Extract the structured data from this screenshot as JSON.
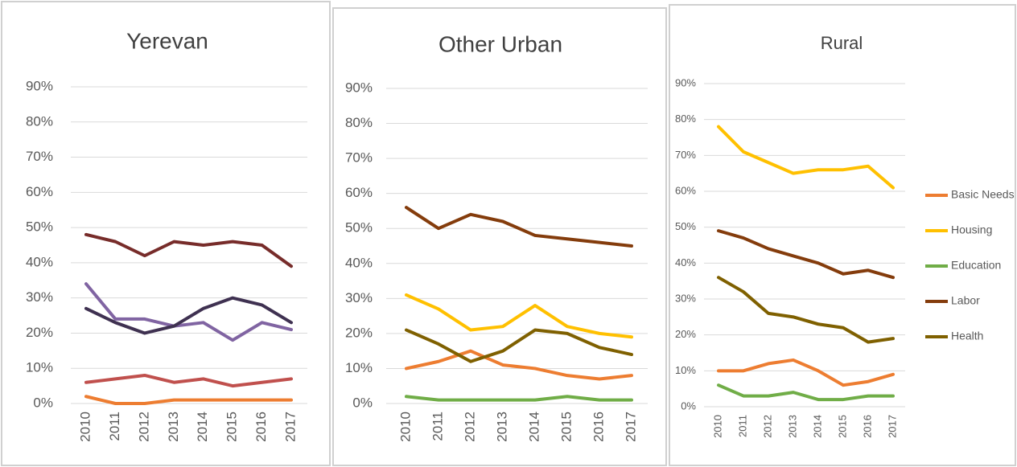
{
  "chart_data": [
    {
      "type": "line",
      "title": "Yerevan",
      "categories": [
        "2010",
        "2011",
        "2012",
        "2013",
        "2014",
        "2015",
        "2016",
        "2017"
      ],
      "ylim": [
        0,
        90
      ],
      "yticks": [
        {
          "value": 0,
          "label": "0%"
        },
        {
          "value": 10,
          "label": "10%"
        },
        {
          "value": 20,
          "label": "20%"
        },
        {
          "value": 30,
          "label": "30%"
        },
        {
          "value": 40,
          "label": "40%"
        },
        {
          "value": 50,
          "label": "50%"
        },
        {
          "value": 60,
          "label": "60%"
        },
        {
          "value": 70,
          "label": "70%"
        },
        {
          "value": 80,
          "label": "80%"
        },
        {
          "value": 90,
          "label": "90%"
        }
      ],
      "grid": true,
      "series": [
        {
          "color": "#ed7d31",
          "values": [
            2,
            0,
            0,
            1,
            1,
            1,
            1,
            1
          ]
        },
        {
          "color": "#c0504d",
          "values": [
            6,
            7,
            8,
            6,
            7,
            5,
            6,
            7
          ]
        },
        {
          "color": "#8064a2",
          "values": [
            34,
            24,
            24,
            22,
            23,
            18,
            23,
            21
          ]
        },
        {
          "color": "#3f3151",
          "values": [
            27,
            23,
            20,
            22,
            27,
            30,
            28,
            23
          ]
        },
        {
          "color": "#772c2a",
          "values": [
            48,
            46,
            42,
            46,
            45,
            46,
            45,
            39
          ]
        }
      ]
    },
    {
      "type": "line",
      "title": "Other Urban",
      "categories": [
        "2010",
        "2011",
        "2012",
        "2013",
        "2014",
        "2015",
        "2016",
        "2017"
      ],
      "ylim": [
        0,
        90
      ],
      "yticks": [
        {
          "value": 0,
          "label": "0%"
        },
        {
          "value": 10,
          "label": "10%"
        },
        {
          "value": 20,
          "label": "20%"
        },
        {
          "value": 30,
          "label": "30%"
        },
        {
          "value": 40,
          "label": "40%"
        },
        {
          "value": 50,
          "label": "50%"
        },
        {
          "value": 60,
          "label": "60%"
        },
        {
          "value": 70,
          "label": "70%"
        },
        {
          "value": 80,
          "label": "80%"
        },
        {
          "value": 90,
          "label": "90%"
        }
      ],
      "grid": true,
      "series": [
        {
          "color": "#ed7d31",
          "values": [
            10,
            12,
            15,
            11,
            10,
            8,
            7,
            8
          ]
        },
        {
          "color": "#ffc000",
          "values": [
            31,
            27,
            21,
            22,
            28,
            22,
            20,
            19
          ]
        },
        {
          "color": "#70ad47",
          "values": [
            2,
            1,
            1,
            1,
            1,
            2,
            1,
            1
          ]
        },
        {
          "color": "#843c0c",
          "values": [
            56,
            50,
            54,
            52,
            48,
            47,
            46,
            45
          ]
        },
        {
          "color": "#7f6000",
          "values": [
            21,
            17,
            12,
            15,
            21,
            20,
            16,
            14
          ]
        }
      ]
    },
    {
      "type": "line",
      "title": "Rural",
      "categories": [
        "2010",
        "2011",
        "2012",
        "2013",
        "2014",
        "2015",
        "2016",
        "2017"
      ],
      "ylim": [
        0,
        90
      ],
      "yticks": [
        {
          "value": 0,
          "label": "0%"
        },
        {
          "value": 10,
          "label": "10%"
        },
        {
          "value": 20,
          "label": "20%"
        },
        {
          "value": 30,
          "label": "30%"
        },
        {
          "value": 40,
          "label": "40%"
        },
        {
          "value": 50,
          "label": "50%"
        },
        {
          "value": 60,
          "label": "60%"
        },
        {
          "value": 70,
          "label": "70%"
        },
        {
          "value": 80,
          "label": "80%"
        },
        {
          "value": 90,
          "label": "90%"
        }
      ],
      "grid": true,
      "legend": "right",
      "series": [
        {
          "name": "Basic Needs",
          "color": "#ed7d31",
          "values": [
            10,
            10,
            12,
            13,
            10,
            6,
            7,
            9
          ]
        },
        {
          "name": "Housing",
          "color": "#ffc000",
          "values": [
            78,
            71,
            68,
            65,
            66,
            66,
            67,
            61
          ]
        },
        {
          "name": "Education",
          "color": "#70ad47",
          "values": [
            6,
            3,
            3,
            4,
            2,
            2,
            3,
            3
          ]
        },
        {
          "name": "Labor",
          "color": "#843c0c",
          "values": [
            49,
            47,
            44,
            42,
            40,
            37,
            38,
            36
          ]
        },
        {
          "name": "Health",
          "color": "#7f6000",
          "values": [
            36,
            32,
            26,
            25,
            23,
            22,
            18,
            19
          ]
        }
      ]
    }
  ]
}
